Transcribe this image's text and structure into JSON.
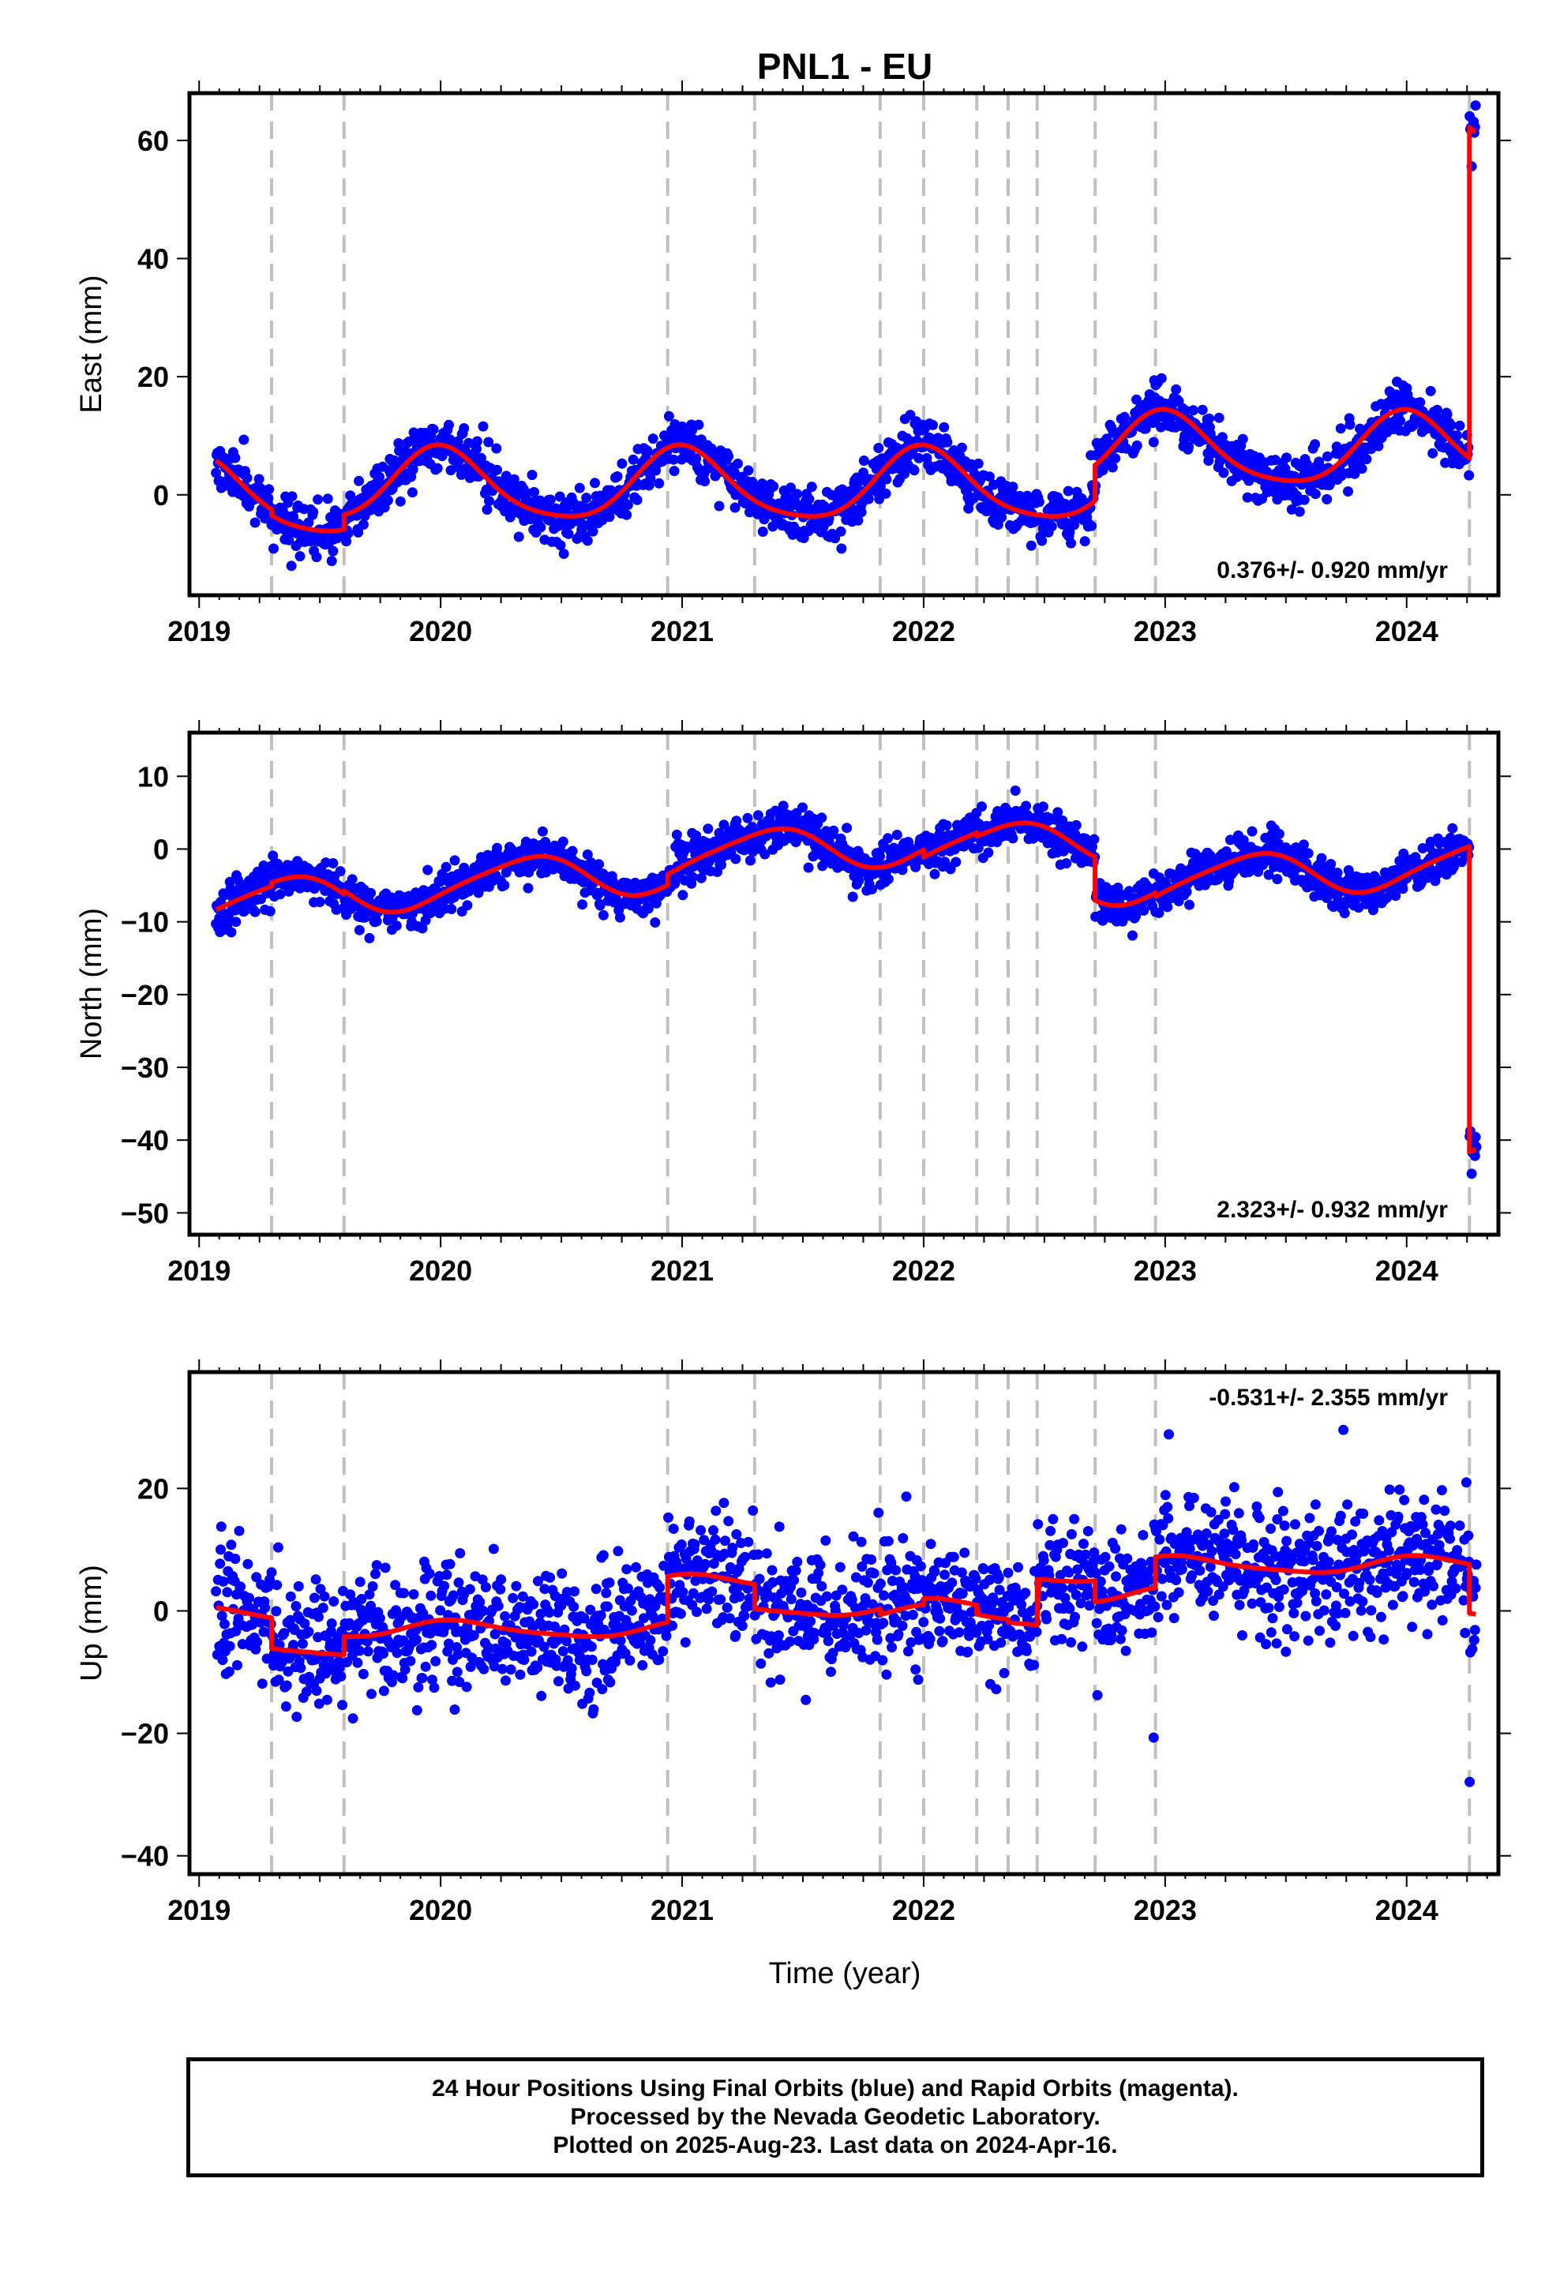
{
  "chart_data": {
    "type": "scatter",
    "title": "PNL1 - EU",
    "xlabel": "Time (year)",
    "x_ticks": [
      2019,
      2020,
      2021,
      2022,
      2023,
      2024
    ],
    "xlim": [
      2018.96,
      2024.38
    ],
    "offset_epochs": [
      2019.3,
      2019.6,
      2020.94,
      2021.3,
      2021.82,
      2022.0,
      2022.22,
      2022.35,
      2022.47,
      2022.71,
      2022.96,
      2024.26
    ],
    "last_epoch": 2024.29,
    "panels": [
      {
        "component": "East",
        "ylabel": "East (mm)",
        "ylim": [
          -17,
          68
        ],
        "y_ticks": [
          0,
          20,
          40,
          60
        ],
        "rate_label": "0.376+/- 0.920 mm/yr",
        "rate_position": "bottom-right",
        "model": {
          "base": 0.0,
          "annual_amp": 6.0,
          "annual_phase": 0.0,
          "semi_amp": 1.0,
          "semi_phase": 0.3,
          "steps": [
            {
              "t": 2019.3,
              "dy": -1.0
            },
            {
              "t": 2019.6,
              "dy": 2.5
            },
            {
              "t": 2022.71,
              "dy": 6.0
            },
            {
              "t": 2024.26,
              "dy": 56.0
            }
          ]
        },
        "scatter_sigma": 2.2,
        "outlier_range": 0,
        "seed": 11
      },
      {
        "component": "North",
        "ylabel": "North (mm)",
        "ylim": [
          -53,
          16
        ],
        "y_ticks": [
          10,
          0,
          -10,
          -20,
          -30,
          -40,
          -50
        ],
        "rate_label": "2.323+/- 0.932 mm/yr",
        "rate_position": "bottom-right",
        "model": {
          "base": -2.5,
          "annual_amp": 3.0,
          "annual_phase": 2.2,
          "semi_amp": 0.5,
          "semi_phase": 0.0,
          "trend": 2.3,
          "steps": [
            {
              "t": 2019.3,
              "dy": 0.5
            },
            {
              "t": 2019.6,
              "dy": 0.5
            },
            {
              "t": 2020.94,
              "dy": 1.5
            },
            {
              "t": 2022.0,
              "dy": -1.0
            },
            {
              "t": 2022.22,
              "dy": -0.5
            },
            {
              "t": 2022.71,
              "dy": -6.0
            },
            {
              "t": 2022.96,
              "dy": -0.5
            },
            {
              "t": 2024.26,
              "dy": -42.0
            }
          ]
        },
        "scatter_sigma": 1.5,
        "outlier_range": 0,
        "seed": 23
      },
      {
        "component": "Up",
        "ylabel": "Up (mm)",
        "ylim": [
          -43,
          39
        ],
        "y_ticks": [
          20,
          0,
          -20,
          -40
        ],
        "rate_label": "-0.531+/- 2.355 mm/yr",
        "rate_position": "top-right",
        "model": {
          "base": -1.0,
          "annual_amp": 1.3,
          "annual_phase": 0.4,
          "semi_amp": 0.3,
          "semi_phase": 0.0,
          "steps": [
            {
              "t": 2019.3,
              "dy": -5.0
            },
            {
              "t": 2019.6,
              "dy": 3.0
            },
            {
              "t": 2020.94,
              "dy": 7.5
            },
            {
              "t": 2021.3,
              "dy": -4.0
            },
            {
              "t": 2021.82,
              "dy": -1.0
            },
            {
              "t": 2022.0,
              "dy": 1.0
            },
            {
              "t": 2022.22,
              "dy": -1.5
            },
            {
              "t": 2022.35,
              "dy": -0.5
            },
            {
              "t": 2022.47,
              "dy": 7.5
            },
            {
              "t": 2022.71,
              "dy": -3.5
            },
            {
              "t": 2022.96,
              "dy": 5.0
            },
            {
              "t": 2024.26,
              "dy": -8.0
            }
          ]
        },
        "scatter_sigma": 5.0,
        "outlier_range": 20,
        "seed": 37
      }
    ]
  },
  "footer": {
    "line1": "24 Hour Positions Using Final Orbits (blue) and Rapid Orbits (magenta).",
    "line2": "Processed by the Nevada Geodetic Laboratory.",
    "line3": "Plotted on 2025-Aug-23. Last data on 2024-Apr-16."
  },
  "colors": {
    "points": "#0000ff",
    "model": "#ff0000",
    "offsets": "#c0c0c0"
  }
}
